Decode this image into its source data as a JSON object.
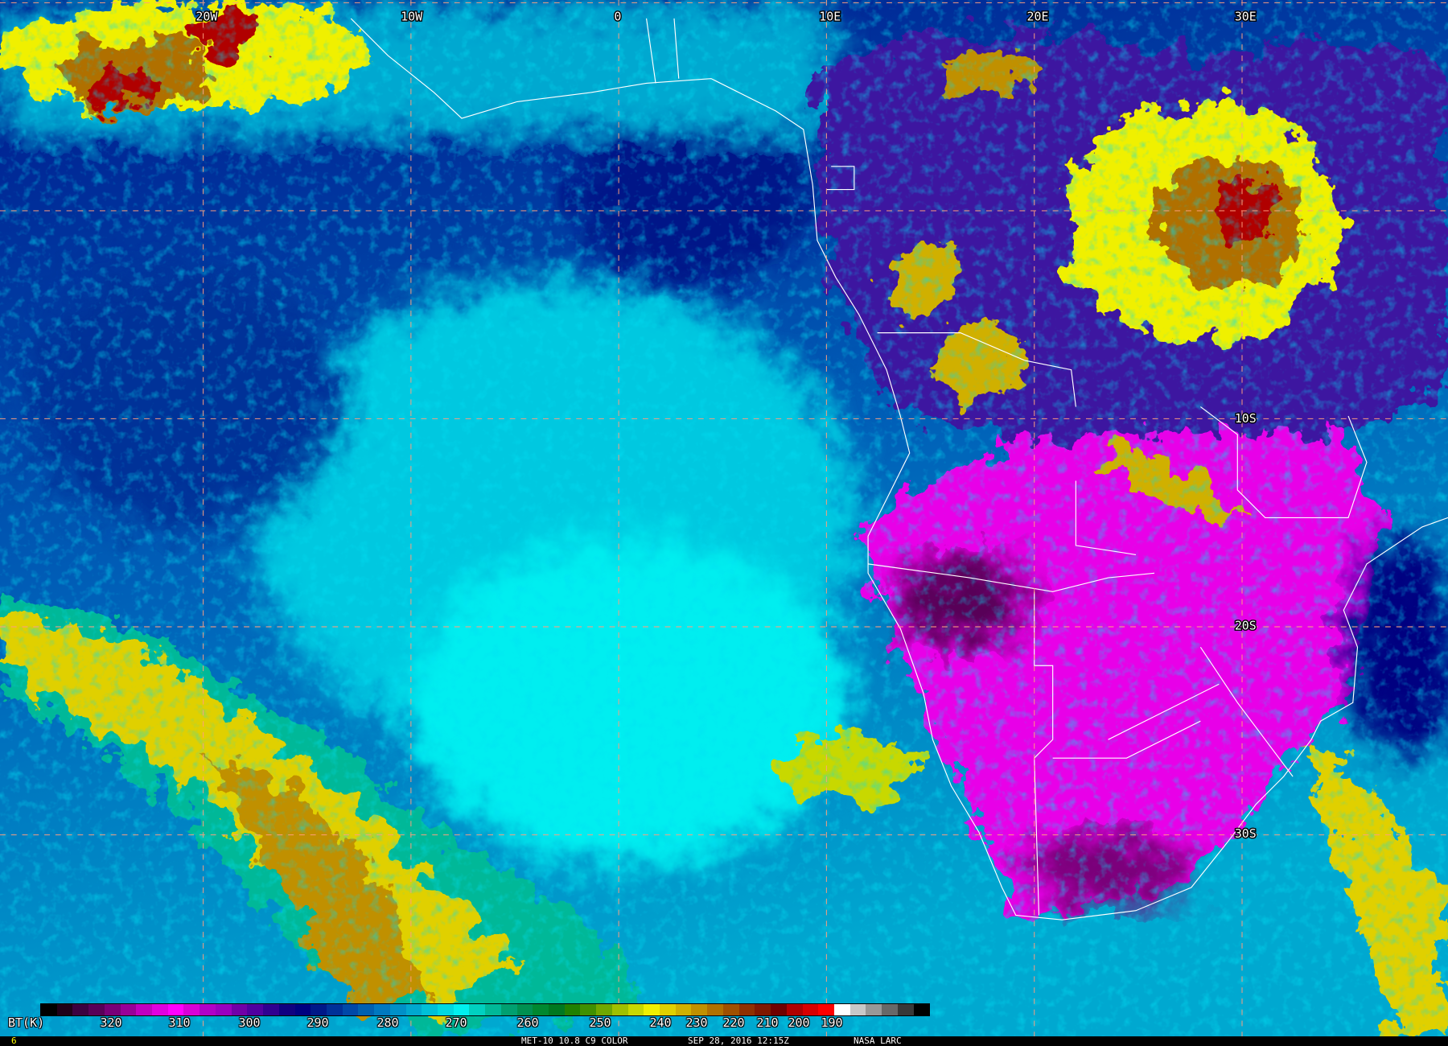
{
  "map": {
    "longitude_labels": [
      "20W",
      "10W",
      "0",
      "10E",
      "20E",
      "30E"
    ],
    "latitude_labels": [
      "10S",
      "20S",
      "30S"
    ],
    "gridline_color": "#ff9f7f",
    "boundary_color": "#ffffff"
  },
  "colorbar": {
    "unit_label": "BT(K)",
    "ticks": [
      "320",
      "310",
      "300",
      "290",
      "280",
      "270",
      "260",
      "250",
      "240",
      "230",
      "220",
      "210",
      "200",
      "190"
    ],
    "colors": [
      "#000000",
      "#200018",
      "#3c0040",
      "#580058",
      "#780078",
      "#980098",
      "#c000c0",
      "#e000e0",
      "#ff00ff",
      "#d800d8",
      "#b000c8",
      "#9800c0",
      "#7000a8",
      "#5000a0",
      "#300090",
      "#100080",
      "#000080",
      "#001888",
      "#003098",
      "#0048a8",
      "#0060b0",
      "#0078c0",
      "#0090c8",
      "#00a8d0",
      "#00c0d8",
      "#00d8e0",
      "#00f0f0",
      "#00d0c0",
      "#00b898",
      "#00a070",
      "#009050",
      "#008830",
      "#007820",
      "#208000",
      "#409000",
      "#70a800",
      "#a0c000",
      "#c8d800",
      "#f0f000",
      "#e0d000",
      "#d0b000",
      "#c09000",
      "#b07000",
      "#a05000",
      "#903000",
      "#801800",
      "#700000",
      "#b00000",
      "#d80000",
      "#ff0000",
      "#ffffff",
      "#c8c8c8",
      "#989898",
      "#686868",
      "#383838",
      "#000000"
    ]
  },
  "footer": {
    "frame_number": "6",
    "product": "MET-10 10.8 C9 COLOR",
    "datetime": "SEP 28, 2016 12:15Z",
    "credit": "NASA LARC"
  }
}
